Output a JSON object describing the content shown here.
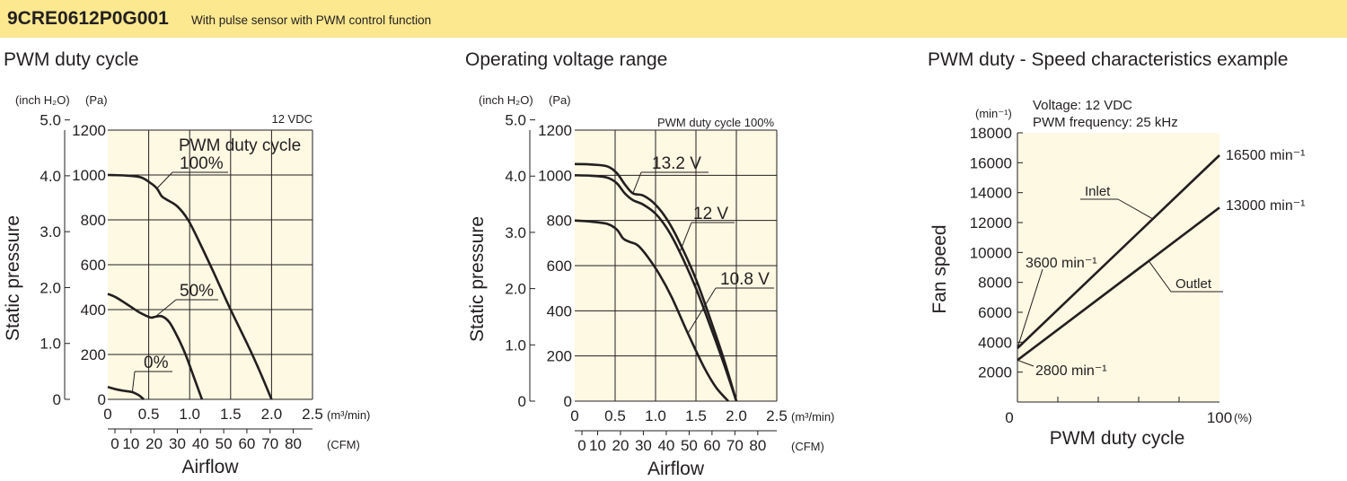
{
  "header": {
    "model": "9CRE0612P0G001",
    "description": "With pulse sensor with PWM control function",
    "background": "#fbe88f"
  },
  "colors": {
    "plot_background": "#fdf9e3",
    "line": "#231f20",
    "grid": "#231f20"
  },
  "chart_data": [
    {
      "type": "line",
      "title": "PWM duty cycle",
      "ylabel": "Static pressure",
      "xlabel": "Airflow",
      "x_unit": "(m³/min)",
      "x2_unit": "(CFM)",
      "y_unit_left": "(inch H₂O)",
      "y_unit_right": "(Pa)",
      "xlim": [
        0,
        2.5
      ],
      "ylim": [
        0,
        1200
      ],
      "x_ticks": [
        "0",
        "0.5",
        "1.0",
        "1.5",
        "2.0",
        "2.5"
      ],
      "y_ticks": [
        "0",
        "200",
        "400",
        "600",
        "800",
        "1000",
        "1200"
      ],
      "y2_ticks": [
        "0",
        "1.0",
        "2.0",
        "3.0",
        "4.0",
        "5.0"
      ],
      "x2_ticks": [
        "0",
        "10",
        "20",
        "30",
        "40",
        "50",
        "60",
        "70",
        "80"
      ],
      "grid": true,
      "annotations": [
        "12 VDC",
        "PWM duty cycle"
      ],
      "series": [
        {
          "name": "100%",
          "x": [
            0,
            0.2,
            0.4,
            0.52,
            0.6,
            0.66,
            0.72,
            0.85,
            0.98,
            1.12,
            1.3,
            1.5,
            1.7,
            1.85,
            2.0
          ],
          "y": [
            1000,
            998,
            990,
            965,
            940,
            905,
            890,
            860,
            800,
            700,
            560,
            400,
            250,
            130,
            0
          ]
        },
        {
          "name": "50%",
          "x": [
            0,
            0.1,
            0.25,
            0.4,
            0.52,
            0.58,
            0.66,
            0.75,
            0.85,
            0.95,
            1.05,
            1.15
          ],
          "y": [
            470,
            455,
            420,
            385,
            365,
            368,
            370,
            345,
            280,
            200,
            100,
            0
          ]
        },
        {
          "name": "0%",
          "x": [
            0,
            0.1,
            0.2,
            0.3,
            0.38,
            0.44
          ],
          "y": [
            55,
            45,
            38,
            32,
            18,
            0
          ]
        }
      ]
    },
    {
      "type": "line",
      "title": "Operating voltage range",
      "ylabel": "Static pressure",
      "xlabel": "Airflow",
      "x_unit": "(m³/min)",
      "x2_unit": "(CFM)",
      "y_unit_left": "(inch H₂O)",
      "y_unit_right": "(Pa)",
      "xlim": [
        0,
        2.5
      ],
      "ylim": [
        0,
        1200
      ],
      "x_ticks": [
        "0",
        "0.5",
        "1.0",
        "1.5",
        "2.0",
        "2.5"
      ],
      "y_ticks": [
        "0",
        "200",
        "400",
        "600",
        "800",
        "1000",
        "1200"
      ],
      "y2_ticks": [
        "0",
        "1.0",
        "2.0",
        "3.0",
        "4.0",
        "5.0"
      ],
      "x2_ticks": [
        "0",
        "10",
        "20",
        "30",
        "40",
        "50",
        "60",
        "70",
        "80"
      ],
      "grid": true,
      "annotations": [
        "PWM duty cycle 100%"
      ],
      "series": [
        {
          "name": "13.2 V",
          "x": [
            0,
            0.2,
            0.4,
            0.52,
            0.62,
            0.72,
            0.85,
            1.0,
            1.15,
            1.3,
            1.5,
            1.7,
            1.85,
            2.0
          ],
          "y": [
            1050,
            1048,
            1040,
            1010,
            960,
            920,
            910,
            870,
            800,
            700,
            540,
            340,
            180,
            0
          ]
        },
        {
          "name": "12 V",
          "x": [
            0,
            0.2,
            0.4,
            0.52,
            0.62,
            0.72,
            0.85,
            1.0,
            1.15,
            1.3,
            1.5,
            1.7,
            1.85,
            2.0
          ],
          "y": [
            1000,
            998,
            990,
            965,
            920,
            890,
            870,
            830,
            760,
            660,
            500,
            310,
            160,
            0
          ]
        },
        {
          "name": "10.8 V",
          "x": [
            0,
            0.2,
            0.4,
            0.52,
            0.6,
            0.68,
            0.78,
            0.9,
            1.05,
            1.2,
            1.4,
            1.6,
            1.75,
            1.9
          ],
          "y": [
            800,
            795,
            785,
            760,
            720,
            705,
            690,
            640,
            560,
            460,
            300,
            150,
            60,
            0
          ]
        }
      ]
    },
    {
      "type": "line",
      "title": "PWM duty - Speed characteristics example",
      "ylabel": "Fan speed",
      "xlabel": "PWM duty cycle",
      "x_unit": "(%)",
      "y_unit_left": "(min⁻¹)",
      "xlim": [
        0,
        100
      ],
      "ylim": [
        0,
        18000
      ],
      "x_ticks": [
        "0",
        "100"
      ],
      "y_ticks": [
        "2000",
        "4000",
        "6000",
        "8000",
        "10000",
        "12000",
        "14000",
        "16000",
        "18000"
      ],
      "grid": false,
      "annotations": [
        "Voltage: 12 VDC",
        "PWM frequency: 25 kHz"
      ],
      "series": [
        {
          "name": "Inlet",
          "x": [
            0,
            100
          ],
          "y": [
            3600,
            16500
          ]
        },
        {
          "name": "Outlet",
          "x": [
            0,
            100
          ],
          "y": [
            2800,
            13000
          ]
        }
      ],
      "point_labels": [
        "16500 min⁻¹",
        "13000 min⁻¹",
        "3600 min⁻¹",
        "2800 min⁻¹"
      ]
    }
  ]
}
